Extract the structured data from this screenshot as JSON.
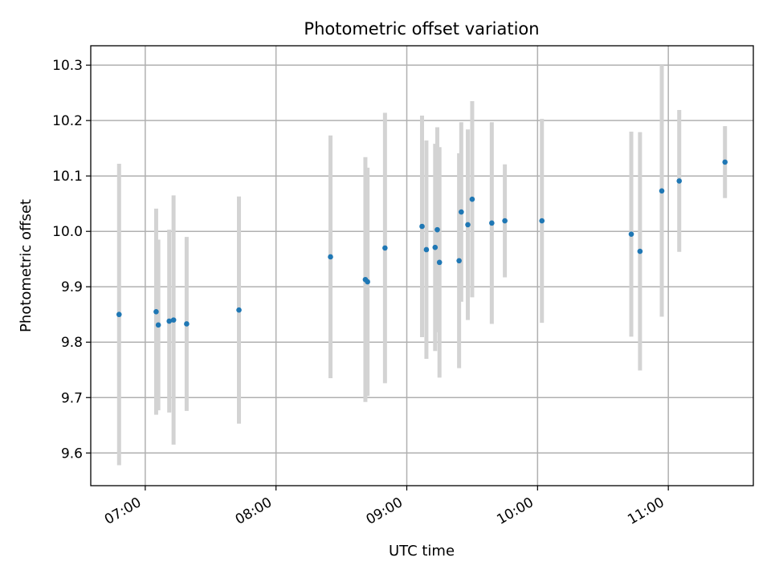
{
  "chart_data": {
    "type": "scatter",
    "title": "Photometric offset variation",
    "xlabel": "UTC time",
    "ylabel": "Photometric offset",
    "xlim": [
      "06:35",
      "11:39"
    ],
    "ylim": [
      9.541,
      10.335
    ],
    "grid": true,
    "legend": "none",
    "point_color": "#1f77b4",
    "errorbar_color": "#d3d3d3",
    "x_ticks": [
      "07:00",
      "08:00",
      "09:00",
      "10:00",
      "11:00"
    ],
    "y_ticks": [
      "9.6",
      "9.7",
      "9.8",
      "9.9",
      "10.0",
      "10.1",
      "10.2",
      "10.3"
    ],
    "points": [
      {
        "x": "06:48",
        "y": 9.85,
        "yerr_low": 9.578,
        "yerr_high": 10.122
      },
      {
        "x": "07:05",
        "y": 9.855,
        "yerr_low": 9.669,
        "yerr_high": 10.041
      },
      {
        "x": "07:06",
        "y": 9.831,
        "yerr_low": 9.677,
        "yerr_high": 9.985
      },
      {
        "x": "07:11",
        "y": 9.838,
        "yerr_low": 9.673,
        "yerr_high": 10.003
      },
      {
        "x": "07:13",
        "y": 9.84,
        "yerr_low": 9.615,
        "yerr_high": 10.065
      },
      {
        "x": "07:19",
        "y": 9.833,
        "yerr_low": 9.676,
        "yerr_high": 9.99
      },
      {
        "x": "07:43",
        "y": 9.858,
        "yerr_low": 9.653,
        "yerr_high": 10.063
      },
      {
        "x": "08:25",
        "y": 9.954,
        "yerr_low": 9.735,
        "yerr_high": 10.173
      },
      {
        "x": "08:41",
        "y": 9.913,
        "yerr_low": 9.692,
        "yerr_high": 10.134
      },
      {
        "x": "08:42",
        "y": 9.909,
        "yerr_low": 9.703,
        "yerr_high": 10.115
      },
      {
        "x": "08:50",
        "y": 9.97,
        "yerr_low": 9.726,
        "yerr_high": 10.214
      },
      {
        "x": "09:07",
        "y": 10.009,
        "yerr_low": 9.809,
        "yerr_high": 10.209
      },
      {
        "x": "09:09",
        "y": 9.967,
        "yerr_low": 9.77,
        "yerr_high": 10.164
      },
      {
        "x": "09:13",
        "y": 9.971,
        "yerr_low": 9.784,
        "yerr_high": 10.158
      },
      {
        "x": "09:14",
        "y": 10.003,
        "yerr_low": 9.818,
        "yerr_high": 10.188
      },
      {
        "x": "09:15",
        "y": 9.944,
        "yerr_low": 9.736,
        "yerr_high": 10.152
      },
      {
        "x": "09:24",
        "y": 9.947,
        "yerr_low": 9.753,
        "yerr_high": 10.141
      },
      {
        "x": "09:25",
        "y": 10.035,
        "yerr_low": 9.873,
        "yerr_high": 10.197
      },
      {
        "x": "09:28",
        "y": 10.012,
        "yerr_low": 9.84,
        "yerr_high": 10.184
      },
      {
        "x": "09:30",
        "y": 10.058,
        "yerr_low": 9.881,
        "yerr_high": 10.235
      },
      {
        "x": "09:39",
        "y": 10.015,
        "yerr_low": 9.833,
        "yerr_high": 10.197
      },
      {
        "x": "09:45",
        "y": 10.019,
        "yerr_low": 9.917,
        "yerr_high": 10.121
      },
      {
        "x": "10:02",
        "y": 10.019,
        "yerr_low": 9.835,
        "yerr_high": 10.203
      },
      {
        "x": "10:43",
        "y": 9.995,
        "yerr_low": 9.81,
        "yerr_high": 10.18
      },
      {
        "x": "10:47",
        "y": 9.964,
        "yerr_low": 9.749,
        "yerr_high": 10.179
      },
      {
        "x": "10:57",
        "y": 10.073,
        "yerr_low": 9.846,
        "yerr_high": 10.3
      },
      {
        "x": "11:05",
        "y": 10.091,
        "yerr_low": 9.963,
        "yerr_high": 10.219
      },
      {
        "x": "11:26",
        "y": 10.125,
        "yerr_low": 10.06,
        "yerr_high": 10.19
      }
    ]
  }
}
